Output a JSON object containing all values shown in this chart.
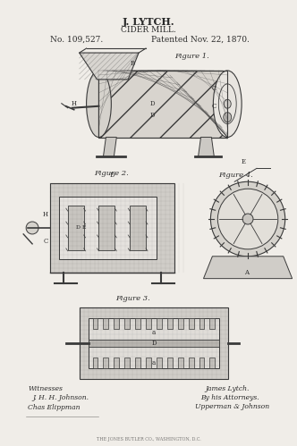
{
  "title_line1": "J. LYTCH.",
  "title_line2": "CIDER MILL.",
  "patent_no": "No. 109,527.",
  "patent_date": "Patented Nov. 22, 1870.",
  "fig1_label": "Figure 1.",
  "fig2_label": "Figure 2.",
  "fig3_label": "Figure 3.",
  "fig4_label": "Figure 4.",
  "witness_label": "Witnesses",
  "witness1": "J. H. H. Johnson.",
  "witness2": "Chas Elippman",
  "inventor": "James Lytch.",
  "attorney_line1": "By his Attorneys.",
  "attorney_line2": "Upperman & Johnson",
  "footer": "THE JONES BUTLER CO., WASHINGTON, D.C.",
  "bg_color": "#f0ede8",
  "text_color": "#2a2a2a",
  "line_color": "#3a3a3a",
  "fig_width": 3.32,
  "fig_height": 4.99,
  "dpi": 100
}
